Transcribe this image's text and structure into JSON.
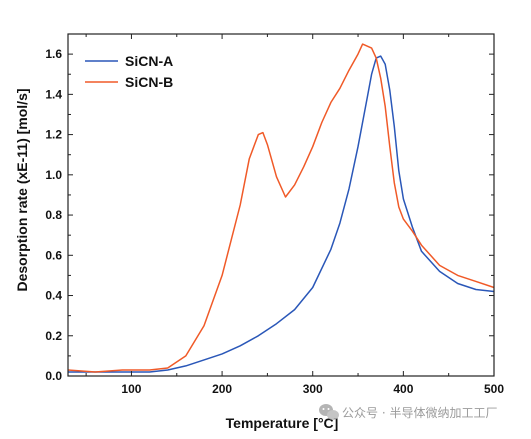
{
  "chart_data": {
    "type": "line",
    "xlabel": "Temperature [°C]",
    "ylabel": "Desorption rate (xE-11) [mol/s]",
    "xlim": [
      30,
      500
    ],
    "ylim": [
      0,
      1.7
    ],
    "x_ticks": [
      100,
      200,
      300,
      400,
      500
    ],
    "y_ticks": [
      0.0,
      0.2,
      0.4,
      0.6,
      0.8,
      1.0,
      1.2,
      1.4,
      1.6
    ],
    "y_tick_labels": [
      "0.0",
      "0.2",
      "0.4",
      "0.6",
      "0.8",
      "1.0",
      "1.2",
      "1.4",
      "1.6"
    ],
    "legend_position": "top-left",
    "series": [
      {
        "name": "SiCN-A",
        "color": "#2a57b8",
        "x": [
          30,
          60,
          90,
          120,
          140,
          160,
          180,
          200,
          220,
          240,
          260,
          280,
          300,
          320,
          330,
          340,
          350,
          360,
          365,
          370,
          375,
          380,
          385,
          390,
          395,
          400,
          410,
          420,
          440,
          460,
          480,
          500
        ],
        "y": [
          0.02,
          0.02,
          0.02,
          0.02,
          0.03,
          0.05,
          0.08,
          0.11,
          0.15,
          0.2,
          0.26,
          0.33,
          0.44,
          0.63,
          0.76,
          0.93,
          1.14,
          1.38,
          1.5,
          1.58,
          1.59,
          1.55,
          1.42,
          1.24,
          1.02,
          0.88,
          0.74,
          0.62,
          0.52,
          0.46,
          0.43,
          0.42
        ]
      },
      {
        "name": "SiCN-B",
        "color": "#f05a28",
        "x": [
          30,
          60,
          90,
          120,
          140,
          160,
          180,
          200,
          220,
          230,
          240,
          245,
          250,
          260,
          270,
          280,
          290,
          300,
          310,
          320,
          330,
          340,
          350,
          355,
          360,
          365,
          370,
          375,
          380,
          385,
          390,
          395,
          400,
          410,
          420,
          440,
          460,
          480,
          500
        ],
        "y": [
          0.03,
          0.02,
          0.03,
          0.03,
          0.04,
          0.1,
          0.25,
          0.5,
          0.85,
          1.08,
          1.2,
          1.21,
          1.15,
          0.99,
          0.89,
          0.95,
          1.04,
          1.14,
          1.26,
          1.36,
          1.43,
          1.52,
          1.6,
          1.65,
          1.64,
          1.63,
          1.58,
          1.48,
          1.34,
          1.14,
          0.96,
          0.84,
          0.78,
          0.72,
          0.65,
          0.55,
          0.5,
          0.47,
          0.44
        ]
      }
    ]
  },
  "watermark": {
    "icon": "wechat-icon",
    "text": "公众号 · 半导体微纳加工工厂"
  }
}
